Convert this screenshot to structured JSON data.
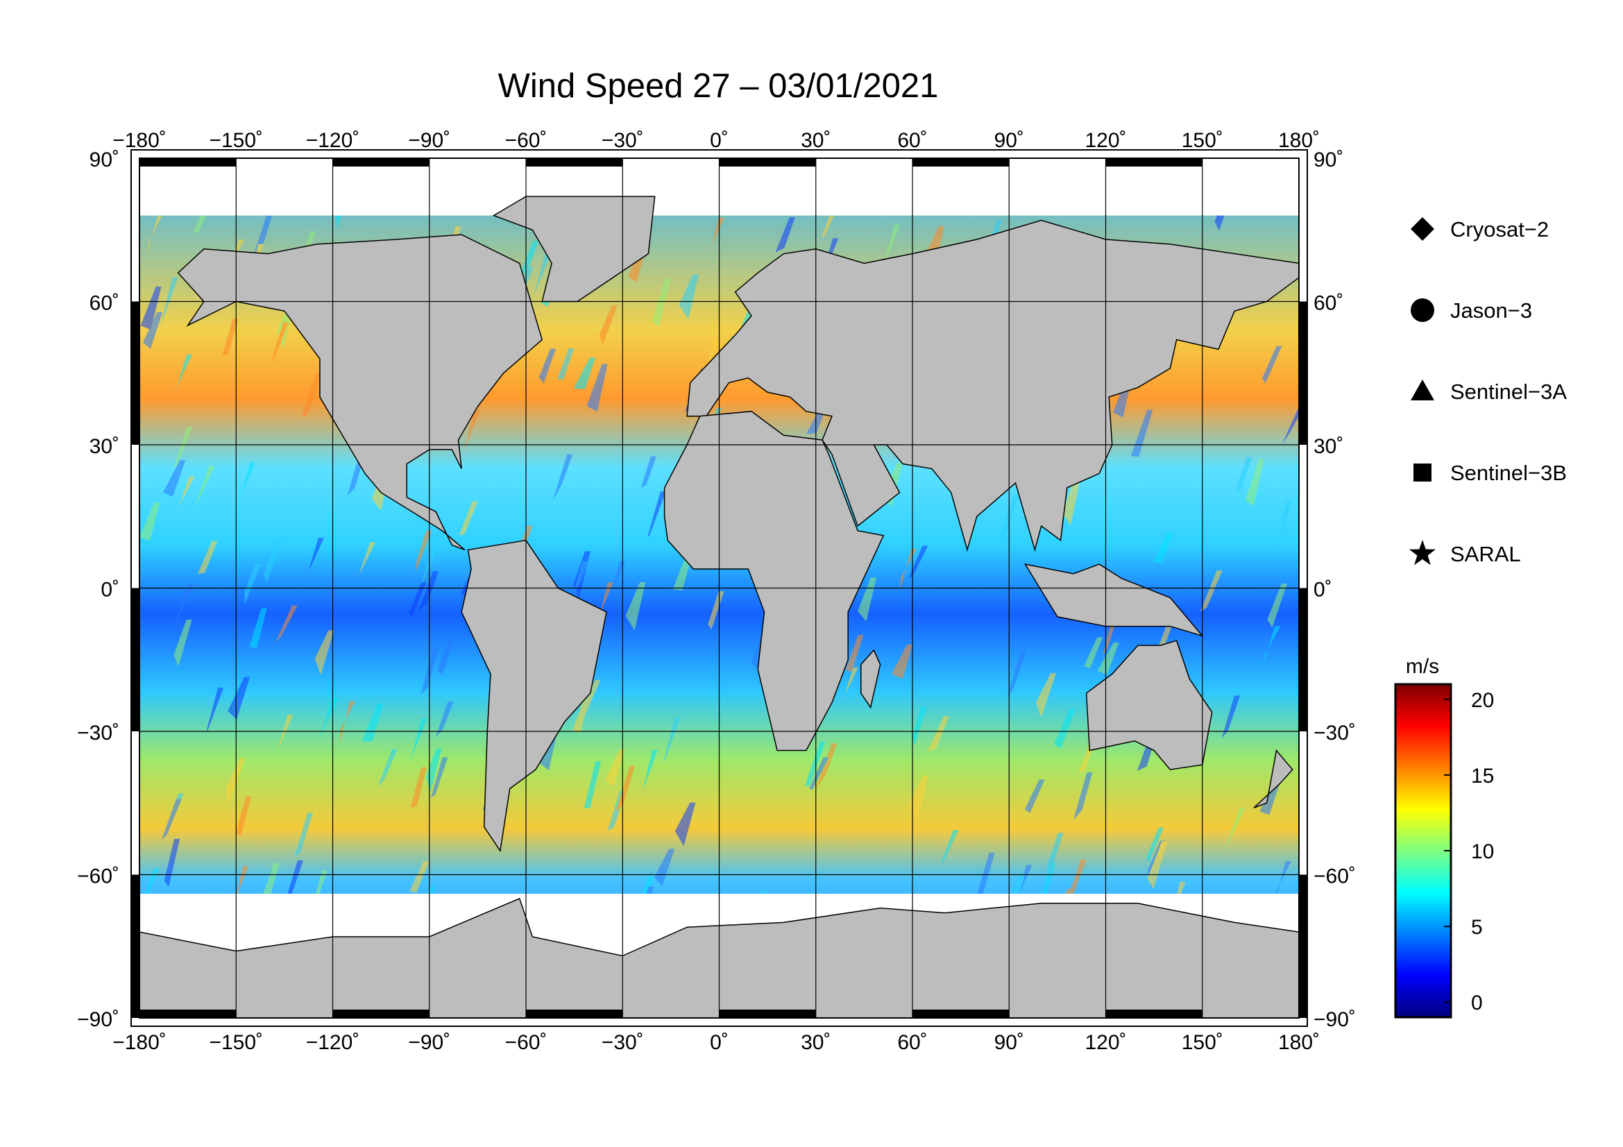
{
  "title": "Wind Speed 27 – 03/01/2021",
  "map": {
    "lon_ticks": [
      -180,
      -150,
      -120,
      -90,
      -60,
      -30,
      0,
      30,
      60,
      90,
      120,
      150,
      180
    ],
    "lat_ticks": [
      90,
      60,
      30,
      0,
      -30,
      -60,
      -90
    ],
    "lon_tick_labels": [
      "−180˚",
      "−150˚",
      "−120˚",
      "−90˚",
      "−60˚",
      "−30˚",
      "0˚",
      "30˚",
      "60˚",
      "90˚",
      "120˚",
      "150˚",
      "180˚"
    ],
    "lat_tick_labels": [
      "90˚",
      "60˚",
      "30˚",
      "0˚",
      "−30˚",
      "−60˚",
      "−90˚"
    ],
    "land_color": "#bdbdbd",
    "coast_color": "#000000",
    "grid": true
  },
  "legend": {
    "items": [
      {
        "symbol": "diamond",
        "label": "Cryosat−2"
      },
      {
        "symbol": "circle",
        "label": "Jason−3"
      },
      {
        "symbol": "triangle",
        "label": "Sentinel−3A"
      },
      {
        "symbol": "square",
        "label": "Sentinel−3B"
      },
      {
        "symbol": "star",
        "label": "SARAL"
      }
    ]
  },
  "colorbar": {
    "unit": "m/s",
    "min": -1,
    "max": 21,
    "ticks": [
      0,
      5,
      10,
      15,
      20
    ],
    "tick_labels": [
      "0",
      "5",
      "10",
      "15",
      "20"
    ],
    "colormap": [
      "#00007f",
      "#0000ff",
      "#007fff",
      "#00ffff",
      "#7fff7f",
      "#ffff00",
      "#ff7f00",
      "#ff0000",
      "#7f0000"
    ]
  }
}
